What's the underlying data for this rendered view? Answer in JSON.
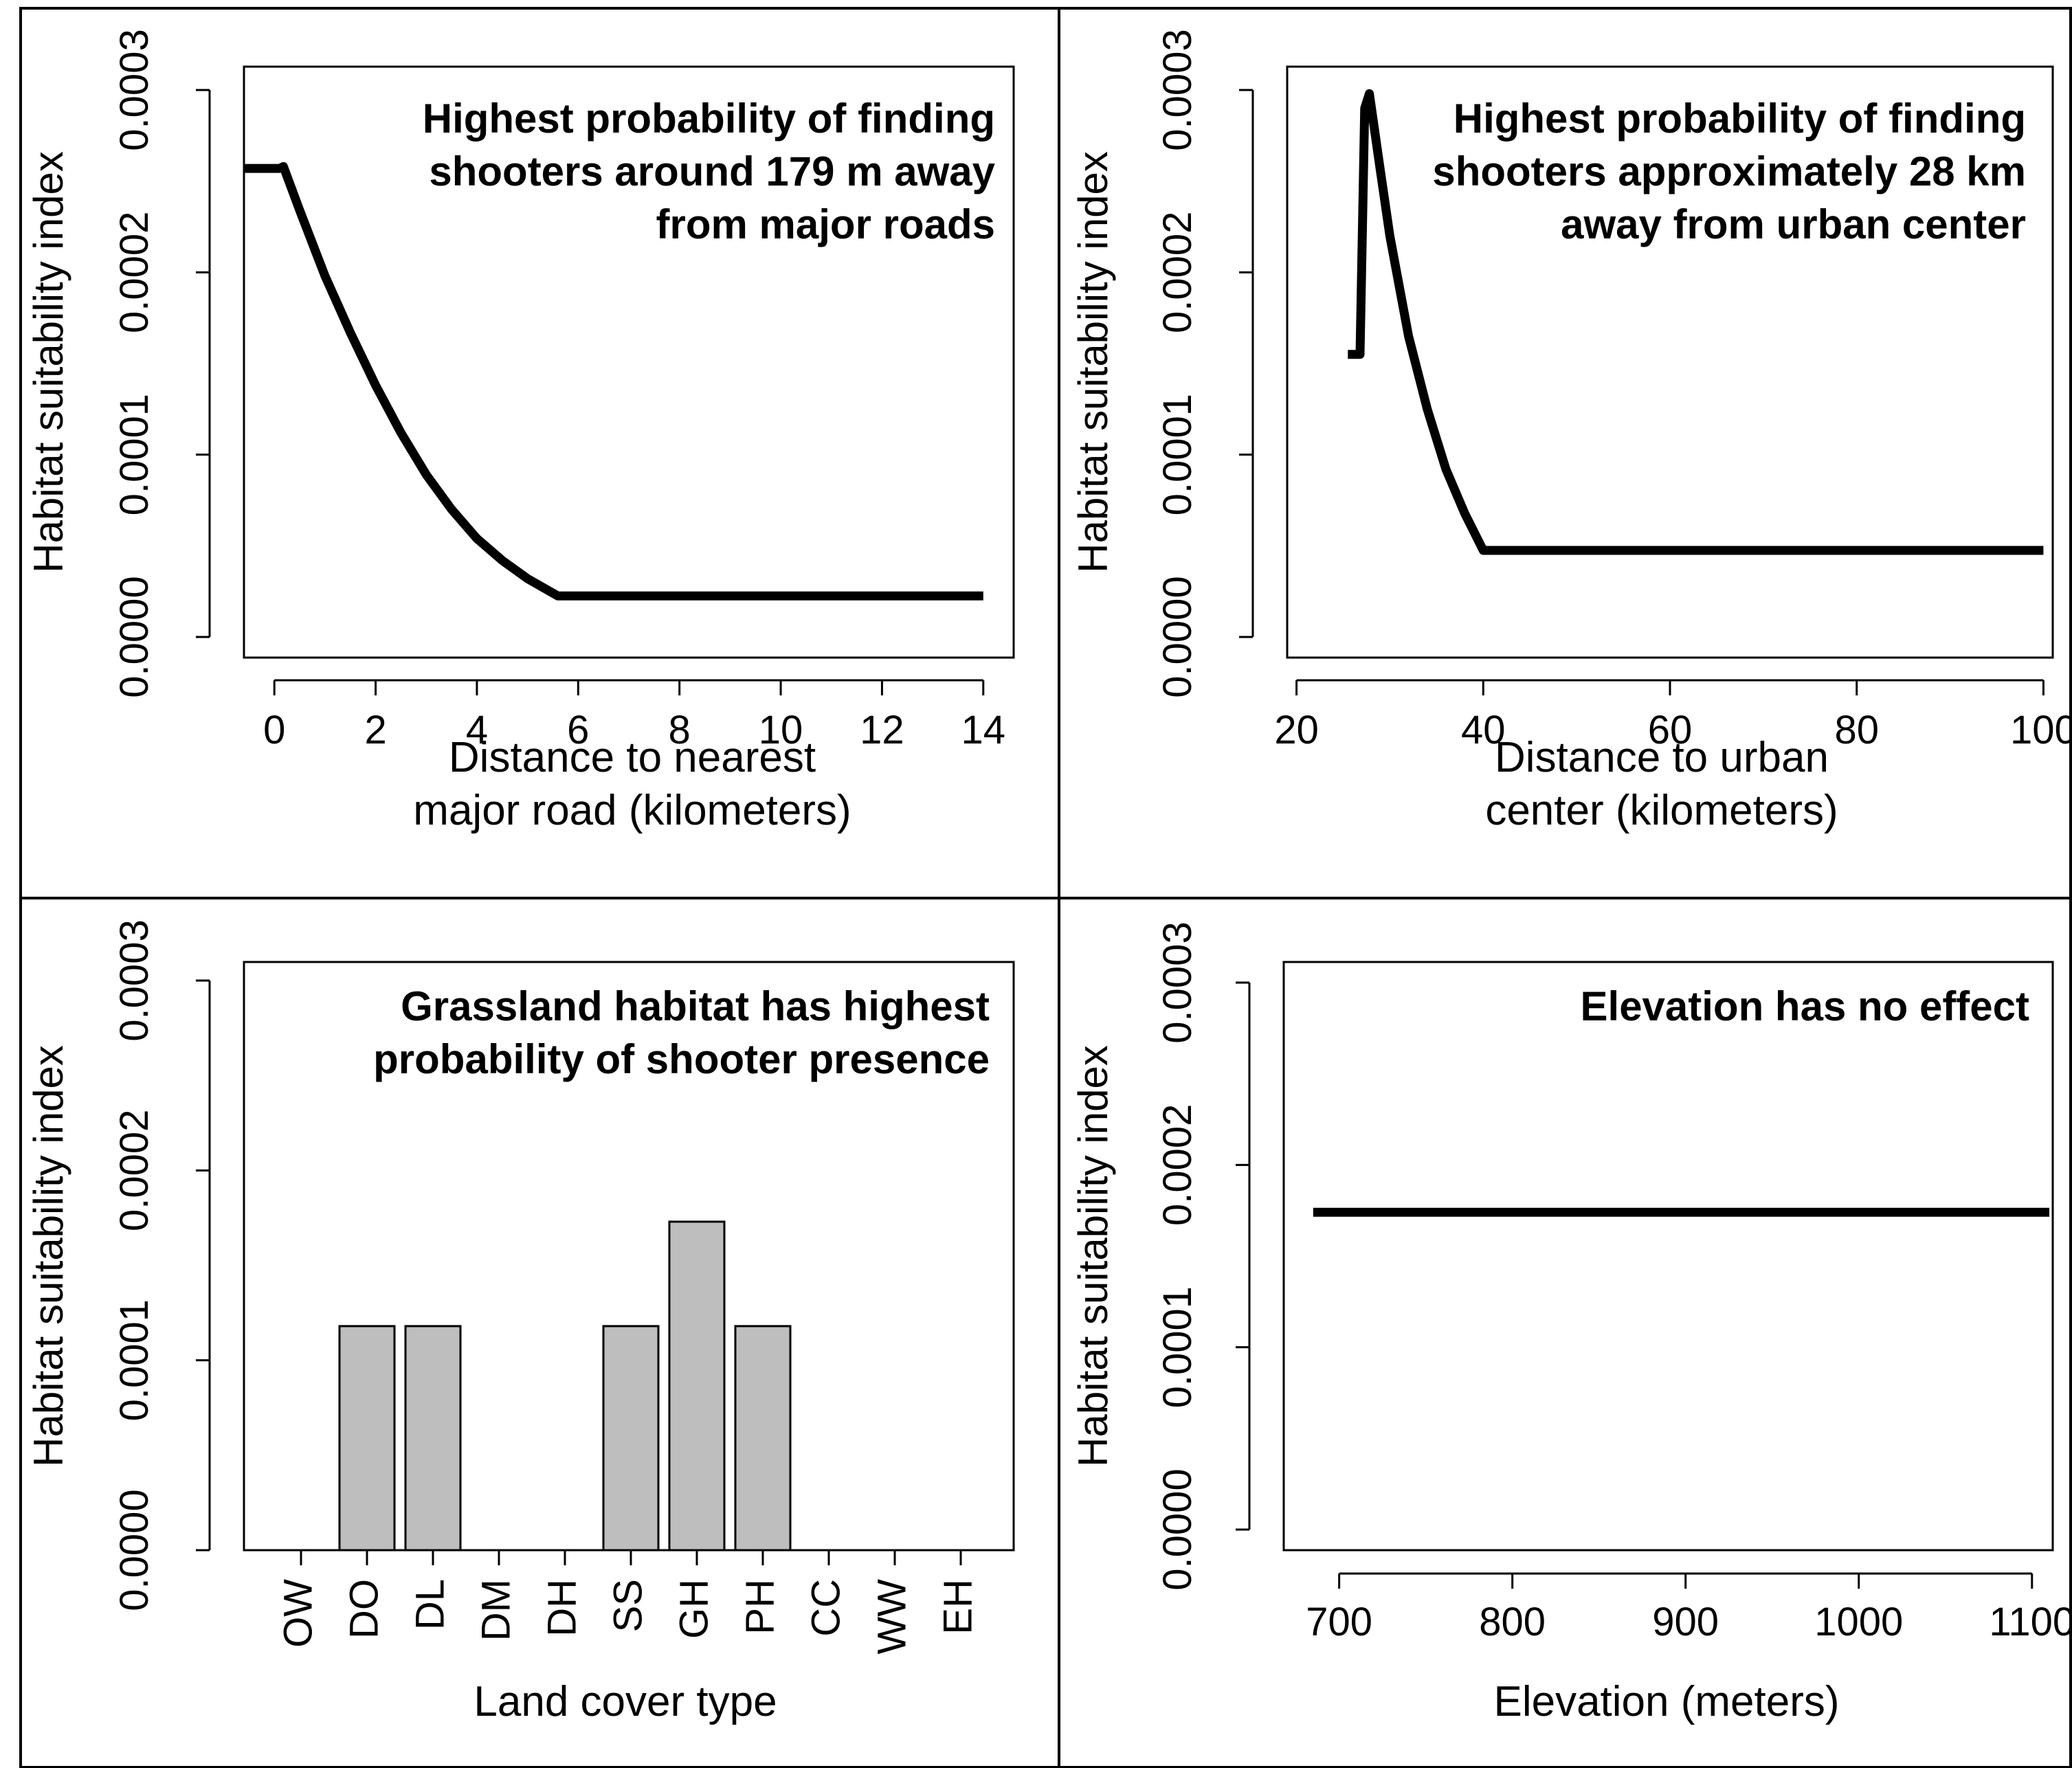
{
  "chart_data": [
    {
      "id": "road",
      "type": "line",
      "ylabel": "Habitat suitability index",
      "xlabel_lines": [
        "Distance to nearest",
        "major road (kilometers)"
      ],
      "annotation_lines": [
        "Highest probability of finding",
        "shooters around 179 m away",
        "from major roads"
      ],
      "xlim": [
        -0.6,
        14.6
      ],
      "ylim": [
        0,
        0.0003
      ],
      "x_ticks": [
        0,
        2,
        4,
        6,
        8,
        10,
        12,
        14
      ],
      "y_ticks": [
        "0.0000",
        "0.0001",
        "0.0002",
        "0.0003"
      ],
      "y_tick_values": [
        0,
        0.0001,
        0.0002,
        0.0003
      ],
      "series": [
        {
          "x": [
            -0.6,
            0.1,
            0.179,
            0.5,
            1,
            1.5,
            2,
            2.5,
            3,
            3.5,
            4,
            4.5,
            5,
            5.6,
            14
          ],
          "y": [
            0.000257,
            0.000257,
            0.000258,
            0.000234,
            0.000198,
            0.000167,
            0.000138,
            0.000112,
            8.9e-05,
            7e-05,
            5.4e-05,
            4.2e-05,
            3.2e-05,
            2.25e-05,
            2.25e-05
          ]
        }
      ]
    },
    {
      "id": "urban",
      "type": "line",
      "ylabel": "Habitat suitability index",
      "xlabel_lines": [
        "Distance to urban",
        "center (kilometers)"
      ],
      "annotation_lines": [
        "Highest probability of finding",
        "shooters approximately 28 km",
        "away from urban center"
      ],
      "xlim": [
        19,
        101
      ],
      "ylim": [
        0,
        0.0003
      ],
      "x_ticks": [
        20,
        40,
        60,
        80,
        100
      ],
      "y_ticks": [
        "0.0000",
        "0.0001",
        "0.0002",
        "0.0003"
      ],
      "y_tick_values": [
        0,
        0.0001,
        0.0002,
        0.0003
      ],
      "series": [
        {
          "x": [
            25.5,
            26.8,
            27.3,
            27.8,
            29,
            30,
            32,
            34,
            36,
            38,
            40,
            100
          ],
          "y": [
            0.000155,
            0.000155,
            0.00029,
            0.000298,
            0.000255,
            0.00022,
            0.000165,
            0.000125,
            9.2e-05,
            6.8e-05,
            4.75e-05,
            4.75e-05
          ]
        }
      ]
    },
    {
      "id": "landcover",
      "type": "bar",
      "ylabel": "Habitat suitability index",
      "xlabel_lines": [
        "Land cover type"
      ],
      "annotation_lines": [
        "Grassland habitat has highest",
        "probability of shooter presence"
      ],
      "categories": [
        "OW",
        "DO",
        "DL",
        "DM",
        "DH",
        "SS",
        "GH",
        "PH",
        "CC",
        "WW",
        "EH"
      ],
      "values": [
        0,
        0.000118,
        0.000118,
        0,
        0,
        0.000118,
        0.000173,
        0.000118,
        0,
        0,
        0
      ],
      "ylim": [
        0,
        0.0003
      ],
      "y_ticks": [
        "0.0000",
        "0.0001",
        "0.0002",
        "0.0003"
      ],
      "y_tick_values": [
        0,
        0.0001,
        0.0002,
        0.0003
      ],
      "bar_color": "#bebebe"
    },
    {
      "id": "elevation",
      "type": "line",
      "ylabel": "Habitat suitability index",
      "xlabel_lines": [
        "Elevation (meters)"
      ],
      "annotation_lines": [
        "Elevation has no effect"
      ],
      "xlim": [
        668,
        1112
      ],
      "ylim": [
        0,
        0.0003
      ],
      "x_ticks": [
        700,
        800,
        900,
        1000,
        1100
      ],
      "y_ticks": [
        "0.0000",
        "0.0001",
        "0.0002",
        "0.0003"
      ],
      "y_tick_values": [
        0,
        0.0001,
        0.0002,
        0.0003
      ],
      "series": [
        {
          "x": [
            685,
            1110
          ],
          "y": [
            0.000174,
            0.000174
          ]
        }
      ]
    }
  ]
}
